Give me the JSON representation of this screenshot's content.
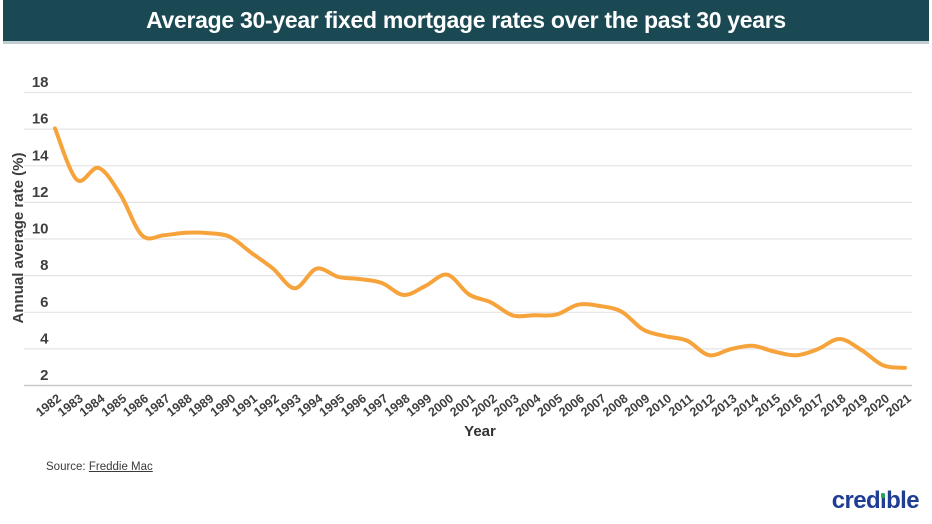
{
  "header": {
    "title": "Average 30-year fixed mortgage rates over the past 30 years"
  },
  "colors": {
    "header_bg": "#1B4953",
    "header_border": "#C2CDD1",
    "header_text": "#FFFFFF",
    "line": "#F7A33C",
    "grid": "#E4E4E4",
    "axis": "#C9C9C9",
    "tick_text": "#3F3F3F",
    "logo_blue": "#1F3D92",
    "logo_green": "#27A65A"
  },
  "chart_data": {
    "type": "line",
    "title": "Average 30-year fixed mortgage rates over the past 30 years",
    "xlabel": "Year",
    "ylabel": "Annual average rate (%)",
    "categories": [
      "1982",
      "1983",
      "1984",
      "1985",
      "1986",
      "1987",
      "1988",
      "1989",
      "1990",
      "1991",
      "1992",
      "1993",
      "1994",
      "1995",
      "1996",
      "1997",
      "1998",
      "1999",
      "2000",
      "2001",
      "2002",
      "2003",
      "2004",
      "2005",
      "2006",
      "2007",
      "2008",
      "2009",
      "2010",
      "2011",
      "2012",
      "2013",
      "2014",
      "2015",
      "2016",
      "2017",
      "2018",
      "2019",
      "2020",
      "2021"
    ],
    "values": [
      16.04,
      13.24,
      13.88,
      12.43,
      10.19,
      10.21,
      10.34,
      10.32,
      10.13,
      9.25,
      8.39,
      7.31,
      8.38,
      7.93,
      7.81,
      7.6,
      6.94,
      7.44,
      8.05,
      6.97,
      6.54,
      5.83,
      5.84,
      5.87,
      6.41,
      6.34,
      6.03,
      5.04,
      4.69,
      4.45,
      3.66,
      3.98,
      4.17,
      3.85,
      3.65,
      3.99,
      4.54,
      3.94,
      3.1,
      2.96
    ],
    "ylim": [
      2,
      18
    ],
    "ytick_step": 2,
    "grid": true,
    "legend_position": "none"
  },
  "footer": {
    "source_prefix": "Source:",
    "source_link": "Freddie Mac"
  },
  "logo": {
    "text": "credible"
  }
}
